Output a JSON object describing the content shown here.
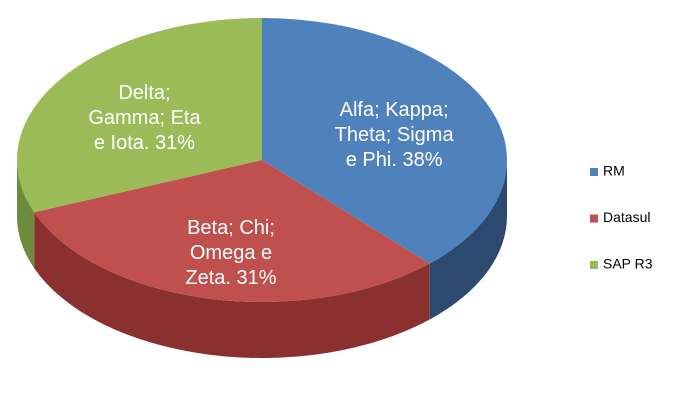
{
  "chart_data": {
    "type": "pie3d",
    "categories": [
      "RM",
      "Datasul",
      "SAP R3"
    ],
    "values": [
      38,
      31,
      31
    ],
    "value_labels": [
      [
        "Alfa; Kappa;",
        "Theta; Sigma",
        "e Phi.  38%"
      ],
      [
        "Beta; Chi;",
        "Omega e",
        "Zeta. 31%"
      ],
      [
        "Delta;",
        "Gamma; Eta",
        "e Iota.    31%"
      ]
    ],
    "colors": [
      "#4f81bd",
      "#c0504d",
      "#9bbb59"
    ],
    "side_colors": [
      "#2c4a70",
      "#8a302e",
      "#6e8a3b"
    ],
    "legend": "right"
  }
}
